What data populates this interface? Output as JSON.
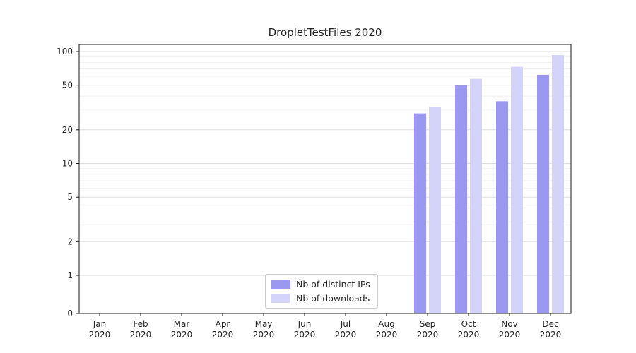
{
  "title": "DropletTestFiles 2020",
  "legend": {
    "items": [
      {
        "label": "Nb of distinct IPs",
        "color": "#9a99ef"
      },
      {
        "label": "Nb of downloads",
        "color": "#d4d4fa"
      }
    ]
  },
  "chart_data": {
    "type": "bar",
    "title": "DropletTestFiles 2020",
    "categories": [
      "Jan 2020",
      "Feb 2020",
      "Mar 2020",
      "Apr 2020",
      "May 2020",
      "Jun 2020",
      "Jul 2020",
      "Aug 2020",
      "Sep 2020",
      "Oct 2020",
      "Nov 2020",
      "Dec 2020"
    ],
    "series": [
      {
        "name": "Nb of distinct IPs",
        "color": "#9a99ef",
        "values": [
          0,
          0,
          0,
          0,
          0,
          0,
          0,
          0,
          28,
          50,
          36,
          62
        ]
      },
      {
        "name": "Nb of downloads",
        "color": "#d4d4fa",
        "values": [
          0,
          0,
          0,
          0,
          0,
          0,
          0,
          0,
          32,
          57,
          73,
          93
        ]
      }
    ],
    "xlabel": "",
    "ylabel": "",
    "yscale": "symlog",
    "yticks": [
      0,
      1,
      2,
      5,
      10,
      20,
      50,
      100
    ],
    "yticks_minor": [
      3,
      4,
      6,
      7,
      8,
      9,
      30,
      40,
      60,
      70,
      80,
      90
    ],
    "ylim": [
      0,
      110
    ],
    "grid": "horizontal",
    "legend_position": "lower center",
    "colors": {
      "bar_distinct_ips": "#9a99ef",
      "bar_downloads": "#d4d4fa",
      "grid_major": "#dddddd",
      "grid_minor": "#f0f0f0",
      "axis": "#000000",
      "text": "#262626"
    }
  }
}
